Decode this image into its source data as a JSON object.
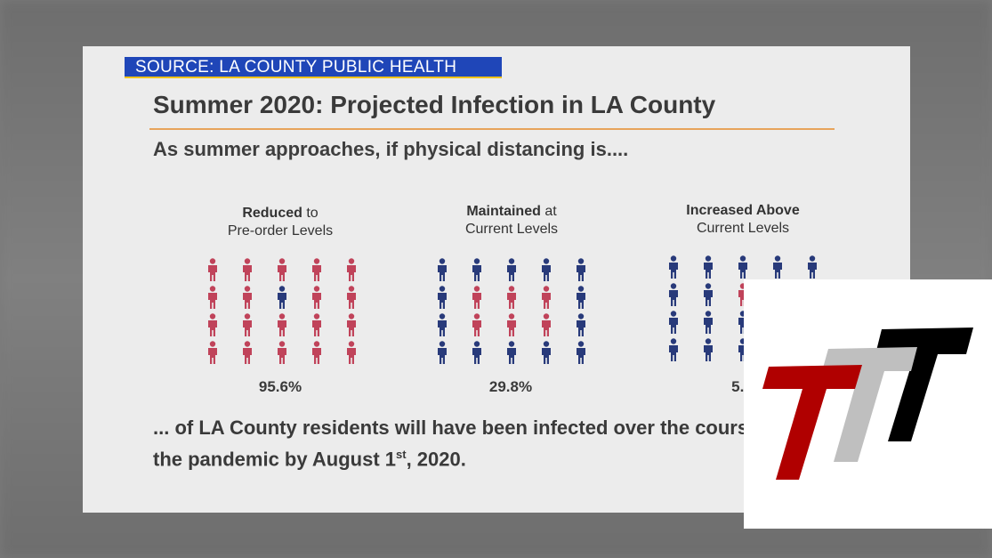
{
  "source_label": "SOURCE: LA COUNTY PUBLIC HEALTH",
  "title": "Summer 2020: Projected Infection in LA County",
  "subtitle": "As summer approaches, if physical distancing is....",
  "scenarios": [
    {
      "bold": "Reduced",
      "rest": " to",
      "line2": "Pre-order Levels",
      "percent": "95.6%",
      "grid": [
        1,
        1,
        1,
        1,
        1,
        1,
        1,
        0,
        1,
        1,
        1,
        1,
        1,
        1,
        1,
        1,
        1,
        1,
        1,
        1
      ]
    },
    {
      "bold": "Maintained",
      "rest": " at",
      "line2": "Current Levels",
      "percent": "29.8%",
      "grid": [
        0,
        0,
        0,
        0,
        0,
        0,
        1,
        1,
        1,
        0,
        0,
        1,
        1,
        1,
        0,
        0,
        0,
        0,
        0,
        0
      ]
    },
    {
      "bold": "Increased Above",
      "rest": "",
      "line2": "Current Levels",
      "percent": "5.5",
      "grid": [
        0,
        0,
        0,
        0,
        0,
        0,
        0,
        1,
        0,
        0,
        0,
        0,
        0,
        0,
        0,
        0,
        0,
        0,
        0,
        0
      ]
    }
  ],
  "footer": {
    "line1": "... of LA County residents  will have been infected over the cours",
    "line2_pre": "the pandemic by August 1",
    "line2_sup": "st",
    "line2_post": ", 2020."
  },
  "colors": {
    "infected": "#c0435a",
    "not_infected": "#283a7a",
    "accent_rule": "#e8a45b",
    "source_bg": "#1f46b8"
  },
  "logo": {
    "icon": "ttt-logo",
    "colors": [
      "#b00000",
      "#bfbfbf",
      "#000000"
    ]
  }
}
